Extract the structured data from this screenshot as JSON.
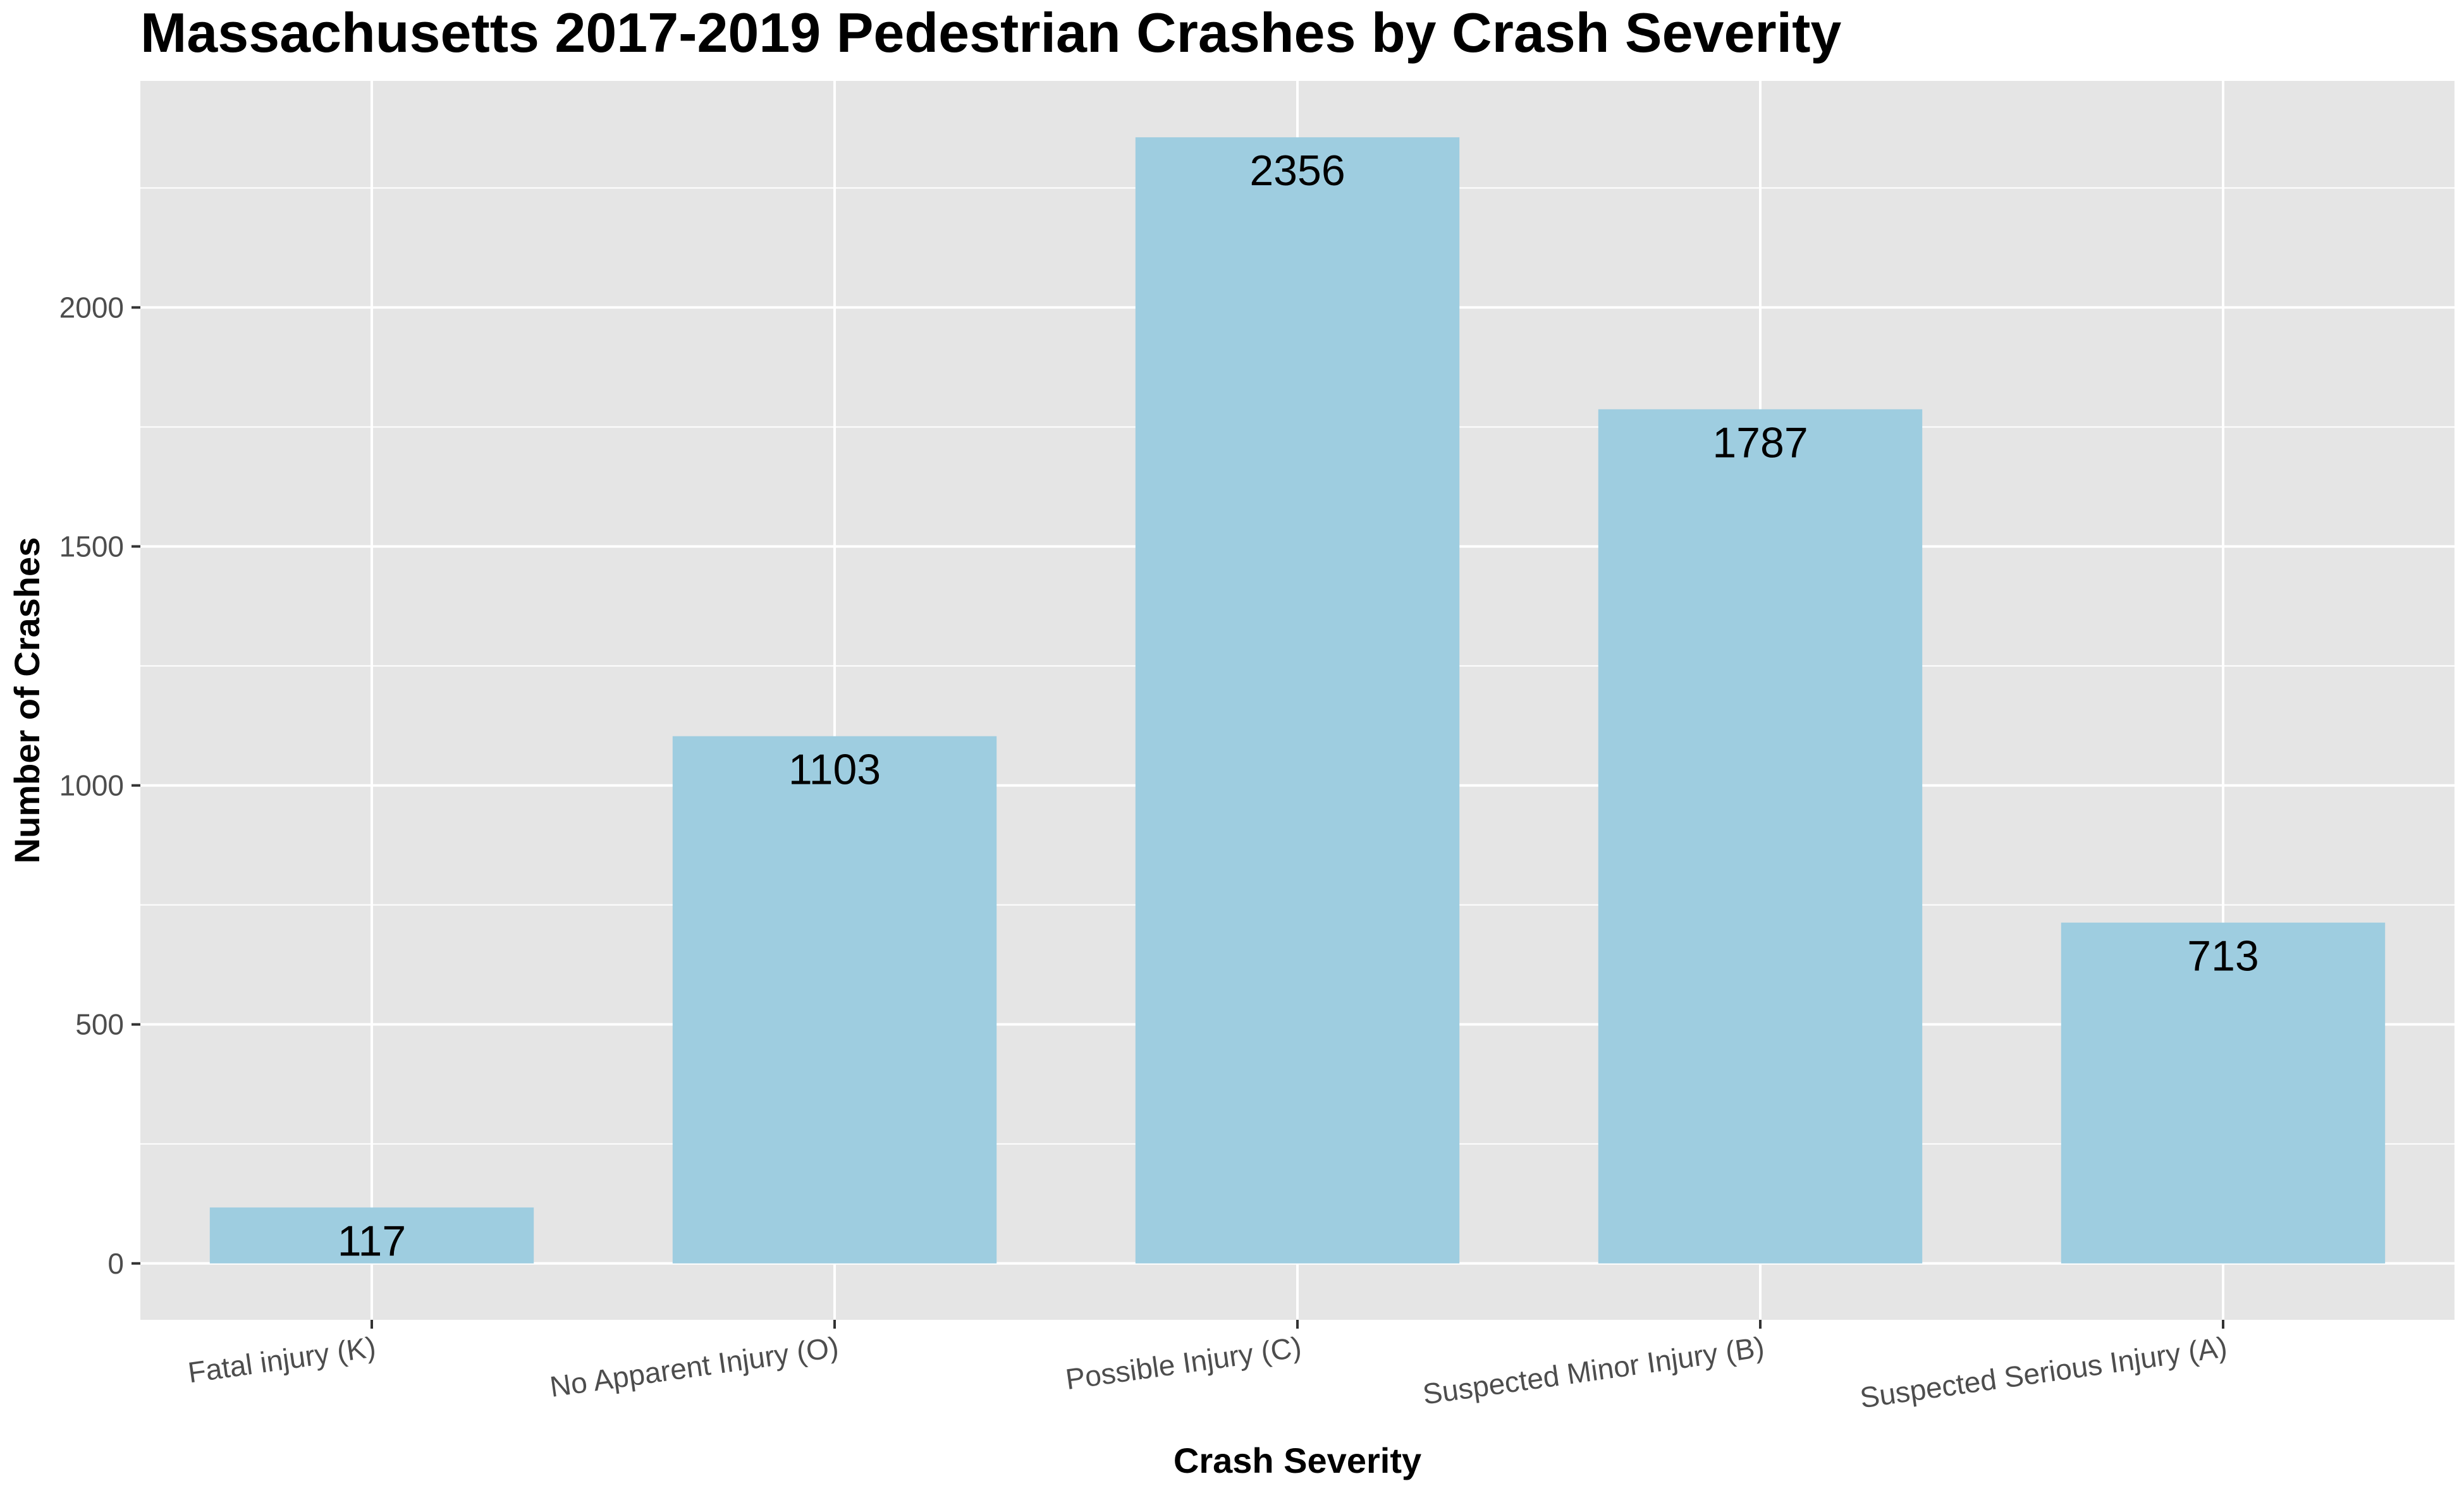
{
  "chart_data": {
    "type": "bar",
    "title": "Massachusetts 2017-2019 Pedestrian Crashes by Crash Severity",
    "xlabel": "Crash Severity",
    "ylabel": "Number of Crashes",
    "categories": [
      "Fatal injury (K)",
      "No Apparent Injury (O)",
      "Possible Injury (C)",
      "Suspected Minor Injury (B)",
      "Suspected Serious Injury (A)"
    ],
    "values": [
      117,
      1103,
      2356,
      1787,
      713
    ],
    "data_labels": [
      "117",
      "1103",
      "2356",
      "1787",
      "713"
    ],
    "y_ticks": [
      0,
      500,
      1000,
      1500,
      2000
    ],
    "y_tick_labels": [
      "0",
      "500",
      "1000",
      "1500",
      "2000"
    ],
    "ylim": [
      -118,
      2474
    ],
    "grid": true,
    "legend": "none",
    "colors": {
      "bar": "#9ecde0",
      "panel": "#e5e5e5",
      "gridline": "#ffffff"
    }
  }
}
